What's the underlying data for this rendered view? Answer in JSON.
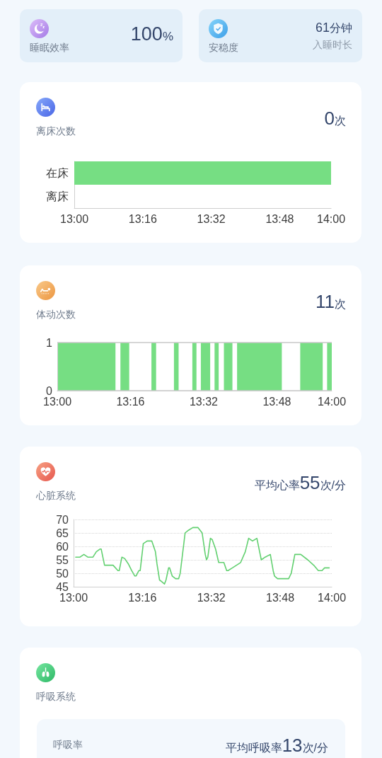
{
  "chart_data": [
    {
      "type": "other",
      "title": "睡眠效率",
      "annotations": [
        "100%"
      ]
    },
    {
      "type": "other",
      "title": "安稳度",
      "annotations": [
        "61分钟",
        "入睡时长"
      ]
    },
    {
      "type": "bar",
      "orientation": "horizontal",
      "title": "离床次数",
      "annotations": [
        "0次"
      ],
      "categories": [
        "在床",
        "离床"
      ],
      "base": [
        13,
        null
      ],
      "values": [
        1,
        null
      ],
      "color": "#76de83",
      "xlim": [
        13,
        14
      ],
      "xticks": [
        {
          "value": 13,
          "label": "13:00"
        },
        {
          "value": 13.2667,
          "label": "13:16"
        },
        {
          "value": 13.5333,
          "label": "13:32"
        },
        {
          "value": 13.8,
          "label": "13:48"
        },
        {
          "value": 14,
          "label": "14:00"
        }
      ]
    },
    {
      "type": "area",
      "title": "体动次数",
      "annotations": [
        "11次"
      ],
      "x": [
        13,
        13,
        13.212,
        13.212,
        13.23,
        13.23,
        13.262,
        13.262,
        13.343,
        13.343,
        13.36,
        13.36,
        13.425,
        13.425,
        13.442,
        13.442,
        13.492,
        13.492,
        13.507,
        13.507,
        13.523,
        13.523,
        13.557,
        13.557,
        13.573,
        13.573,
        13.588,
        13.588,
        13.607,
        13.607,
        13.638,
        13.638,
        13.655,
        13.655,
        13.818,
        13.818,
        13.885,
        13.885,
        13.967,
        13.967,
        13.983,
        13.983,
        14,
        14
      ],
      "values": [
        0,
        1,
        1,
        0,
        0,
        1,
        1,
        0,
        0,
        1,
        1,
        0,
        0,
        1,
        1,
        0,
        0,
        1,
        1,
        0,
        0,
        1,
        1,
        0,
        0,
        1,
        1,
        0,
        0,
        1,
        1,
        0,
        0,
        1,
        1,
        0,
        0,
        1,
        1,
        0,
        0,
        1,
        1,
        0
      ],
      "color": "#76de83",
      "xlim": [
        13,
        14
      ],
      "xticks": [
        {
          "value": 13,
          "label": "13:00"
        },
        {
          "value": 13.2667,
          "label": "13:16"
        },
        {
          "value": 13.5333,
          "label": "13:32"
        },
        {
          "value": 13.8,
          "label": "13:48"
        },
        {
          "value": 14,
          "label": "14:00"
        }
      ],
      "ylim": [
        0,
        1
      ],
      "yticks": [
        0,
        1
      ],
      "grid": "y"
    },
    {
      "type": "line",
      "title": "心脏系统",
      "annotations": [
        "平均心率55次/分"
      ],
      "x": [
        13.008,
        13.025,
        13.04,
        13.055,
        13.075,
        13.088,
        13.102,
        13.107,
        13.12,
        13.153,
        13.172,
        13.177,
        13.187,
        13.198,
        13.212,
        13.225,
        13.237,
        13.242,
        13.253,
        13.258,
        13.27,
        13.285,
        13.303,
        13.317,
        13.323,
        13.333,
        13.34,
        13.352,
        13.358,
        13.368,
        13.372,
        13.382,
        13.395,
        13.407,
        13.413,
        13.432,
        13.445,
        13.462,
        13.482,
        13.498,
        13.51,
        13.515,
        13.52,
        13.53,
        13.537,
        13.55,
        13.562,
        13.582,
        13.593,
        13.598,
        13.615,
        13.647,
        13.665,
        13.678,
        13.693,
        13.71,
        13.727,
        13.742,
        13.762,
        13.773,
        13.778,
        13.79,
        13.833,
        13.843,
        13.857,
        13.88,
        13.907,
        13.93,
        13.948,
        13.962,
        13.972,
        13.99
      ],
      "values": [
        56,
        56,
        57,
        56,
        56,
        58,
        59,
        59,
        53,
        53,
        51,
        51,
        56,
        55.5,
        53.5,
        51,
        49,
        49,
        51,
        51,
        61,
        62,
        62,
        58,
        53.5,
        47.5,
        47,
        46,
        47.5,
        52,
        52,
        49,
        48,
        48,
        50,
        65,
        66,
        67,
        67,
        65,
        57,
        55,
        56,
        63,
        62.5,
        59,
        54,
        54,
        51,
        51,
        52,
        54,
        58,
        63,
        62,
        63,
        55,
        56,
        57,
        51,
        49,
        48,
        48,
        50,
        57,
        57,
        55,
        53,
        51,
        51,
        52,
        52
      ],
      "color": "#62d070",
      "xlim": [
        13,
        14
      ],
      "xticks": [
        {
          "value": 13,
          "label": "13:00"
        },
        {
          "value": 13.2667,
          "label": "13:16"
        },
        {
          "value": 13.5333,
          "label": "13:32"
        },
        {
          "value": 13.8,
          "label": "13:48"
        },
        {
          "value": 14,
          "label": "14:00"
        }
      ],
      "ylim": [
        45,
        70
      ],
      "yticks": [
        45,
        50,
        55,
        60,
        65,
        70
      ],
      "grid": "y"
    },
    {
      "type": "other",
      "title": "呼吸系统",
      "subtitle": "呼吸率",
      "annotations": [
        "平均呼吸率13次/分"
      ]
    }
  ]
}
